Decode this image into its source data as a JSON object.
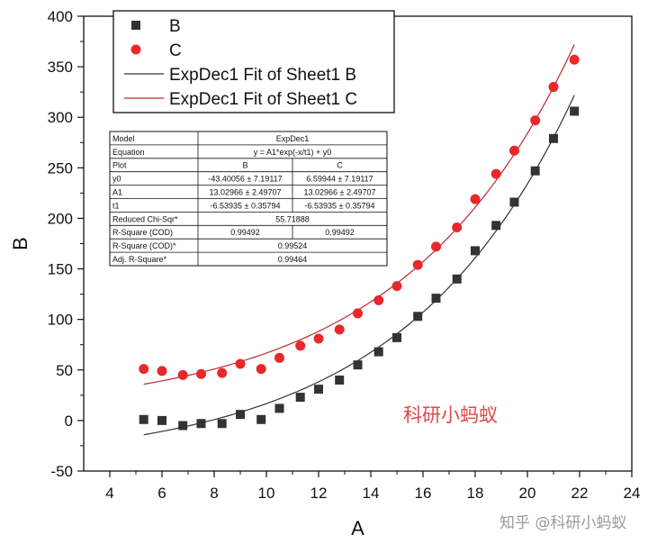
{
  "chart_data": {
    "type": "scatter",
    "xlabel": "A",
    "ylabel": "B",
    "xlim": [
      3,
      24
    ],
    "ylim": [
      -50,
      400
    ],
    "x_ticks": [
      4,
      6,
      8,
      10,
      12,
      14,
      16,
      18,
      20,
      22,
      24
    ],
    "y_ticks": [
      -50,
      0,
      50,
      100,
      150,
      200,
      250,
      300,
      350,
      400
    ],
    "x": [
      5.3,
      6.0,
      6.8,
      7.5,
      8.3,
      9.0,
      9.8,
      10.5,
      11.3,
      12.0,
      12.8,
      13.5,
      14.3,
      15.0,
      15.8,
      16.5,
      17.3,
      18.0,
      18.8,
      19.5,
      20.3,
      21.0,
      21.8
    ],
    "series": [
      {
        "name": "B",
        "marker": "square",
        "color": "#333333",
        "values": [
          1,
          0,
          -5,
          -3,
          -3,
          6,
          1,
          12,
          23,
          31,
          40,
          55,
          68,
          82,
          103,
          121,
          140,
          168,
          193,
          216,
          247,
          279,
          306
        ]
      },
      {
        "name": "C",
        "marker": "circle",
        "color": "#e8282b",
        "values": [
          51,
          49,
          45,
          46,
          47,
          56,
          51,
          62,
          74,
          81,
          90,
          106,
          119,
          133,
          154,
          172,
          191,
          219,
          244,
          267,
          297,
          330,
          357
        ]
      }
    ],
    "fits": [
      {
        "name": "ExpDec1 Fit of Sheet1 B",
        "color": "#333333",
        "y0": -43.40056,
        "A1": 13.02966,
        "t1": -6.53935,
        "x_range": [
          5.3,
          21.8
        ]
      },
      {
        "name": "ExpDec1 Fit of Sheet1 C",
        "color": "#c0282b",
        "y0": 6.59944,
        "A1": 13.02966,
        "t1": -6.53935,
        "x_range": [
          5.3,
          21.8
        ]
      }
    ],
    "legend_position": "top-left",
    "grid": false
  },
  "legend": {
    "items": [
      {
        "label": "B",
        "kind": "square",
        "color": "#333333"
      },
      {
        "label": "C",
        "kind": "circle",
        "color": "#e8282b"
      },
      {
        "label": "ExpDec1 Fit of Sheet1 B",
        "kind": "line",
        "color": "#333333"
      },
      {
        "label": "ExpDec1 Fit of Sheet1 C",
        "kind": "line",
        "color": "#c0282b"
      }
    ]
  },
  "fit_table": {
    "rows": [
      [
        "Model",
        "ExpDec1",
        ""
      ],
      [
        "Equation",
        "y = A1*exp(-x/t1) + y0",
        ""
      ],
      [
        "Plot",
        "B",
        "C"
      ],
      [
        "y0",
        "-43.40056 ± 7.19117",
        "6.59944 ± 7.19117"
      ],
      [
        "A1",
        "13.02966 ± 2.49707",
        "13.02966 ± 2.49707"
      ],
      [
        "t1",
        "-6.53935 ± 0.35794",
        "-6.53935 ± 0.35794"
      ],
      [
        "Reduced Chi-Sqr*",
        "55.71888",
        ""
      ],
      [
        "R-Square (COD)",
        "0.99492",
        "0.99492"
      ],
      [
        "R-Square (COD)*",
        "0.99524",
        ""
      ],
      [
        "Adj. R-Square*",
        "0.99464",
        ""
      ]
    ]
  },
  "watermarks": {
    "center": "科研小蚂蚁",
    "bottom_right": "知乎 @科研小蚂蚁"
  }
}
